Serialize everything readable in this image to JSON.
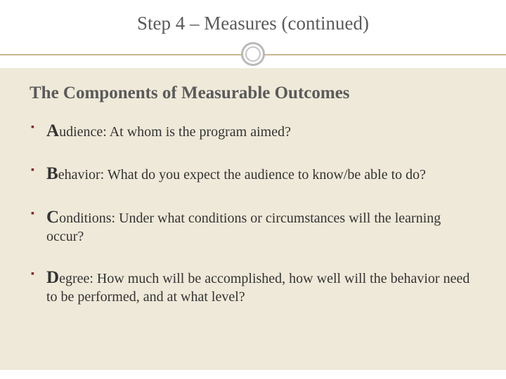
{
  "colors": {
    "background": "#ffffff",
    "content_bg": "#efe9d9",
    "title_text": "#5a5a5a",
    "body_text": "#333333",
    "bullet_marker": "#8a1f1f",
    "divider_line": "#c9b78f",
    "circle_border": "#b9b9b9"
  },
  "typography": {
    "title_fontsize": 27,
    "subtitle_fontsize": 25,
    "body_fontsize": 20,
    "big_letter_fontsize": 25,
    "font_family": "Georgia, serif"
  },
  "title": "Step 4 – Measures (continued)",
  "subtitle": "The Components of Measurable Outcomes",
  "bullets": [
    {
      "letter": "A",
      "rest": "udience: At whom is the program aimed?"
    },
    {
      "letter": "B",
      "rest": "ehavior: What do you expect the audience to know/be able to do?"
    },
    {
      "letter": "C",
      "rest": "onditions: Under what conditions or circumstances will the learning occur?"
    },
    {
      "letter": "D",
      "rest": "egree: How much will be accomplished, how well will the behavior need to be performed, and at what level?"
    }
  ]
}
